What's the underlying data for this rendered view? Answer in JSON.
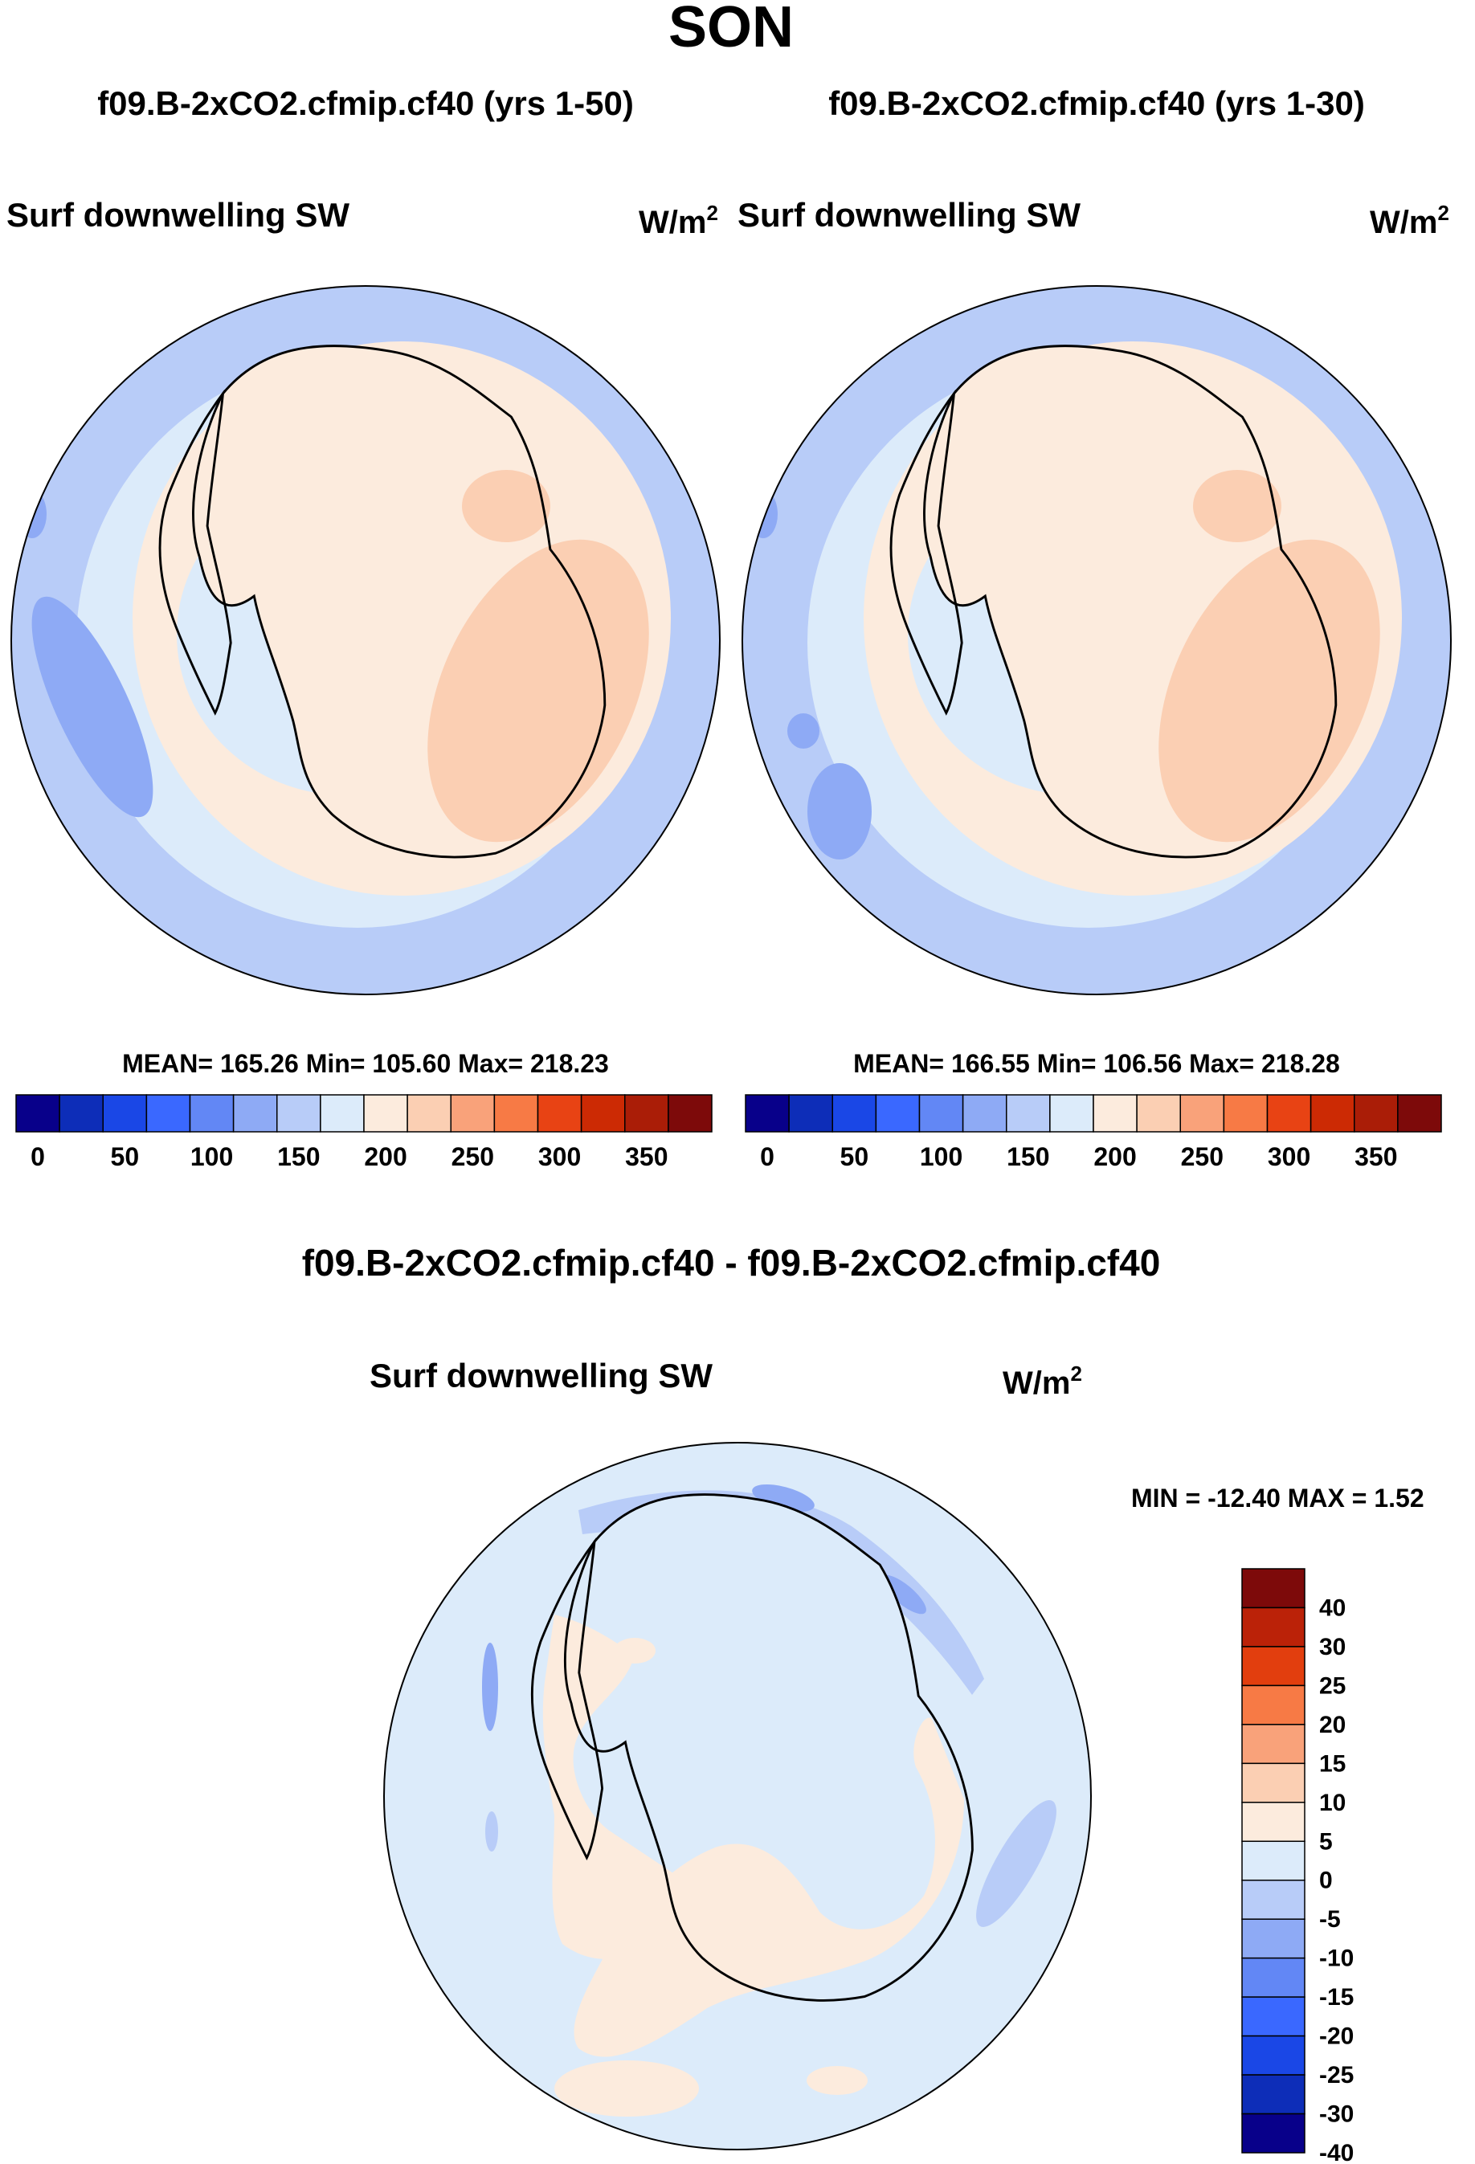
{
  "figure": {
    "season": "SON",
    "units": "W/m",
    "units_exp": "2"
  },
  "panels": [
    {
      "title": "f09.B-2xCO2.cfmip.cf40 (yrs 1-50)",
      "variable": "Surf downwelling SW",
      "stats": "MEAN= 165.26  Min= 105.60  Max= 218.23"
    },
    {
      "title": "f09.B-2xCO2.cfmip.cf40 (yrs 1-30)",
      "variable": "Surf downwelling SW",
      "stats": "MEAN= 166.55  Min= 106.56  Max= 218.28"
    }
  ],
  "diff_panel": {
    "title": "f09.B-2xCO2.cfmip.cf40 - f09.B-2xCO2.cfmip.cf40",
    "variable": "Surf downwelling SW",
    "stats": "MIN = -12.40 MAX =   1.52"
  },
  "abs_colorbar": {
    "colors": [
      "#08008a",
      "#0d2db8",
      "#1a47e6",
      "#3a68ff",
      "#6287f5",
      "#8eaaf5",
      "#b8ccf8",
      "#dcebfa",
      "#fcebdd",
      "#fbcfb3",
      "#f9a27a",
      "#f77a45",
      "#e84314",
      "#cc2a04",
      "#aa1d07",
      "#7d0a0a"
    ],
    "ticks": [
      "0",
      "50",
      "100",
      "150",
      "200",
      "250",
      "300",
      "350"
    ]
  },
  "diff_colorbar": {
    "colors": [
      "#7d0a0a",
      "#bb2208",
      "#e23e0e",
      "#f77a45",
      "#f9a27a",
      "#fbcfb3",
      "#fcebdd",
      "#dcebfa",
      "#b8ccf8",
      "#8eaaf5",
      "#6287f5",
      "#3a68ff",
      "#1a47e6",
      "#0d2db8",
      "#08008a"
    ],
    "ticks": [
      "40",
      "30",
      "25",
      "20",
      "15",
      "10",
      "5",
      "0",
      "-5",
      "-10",
      "-15",
      "-20",
      "-25",
      "-30",
      "-40"
    ]
  }
}
